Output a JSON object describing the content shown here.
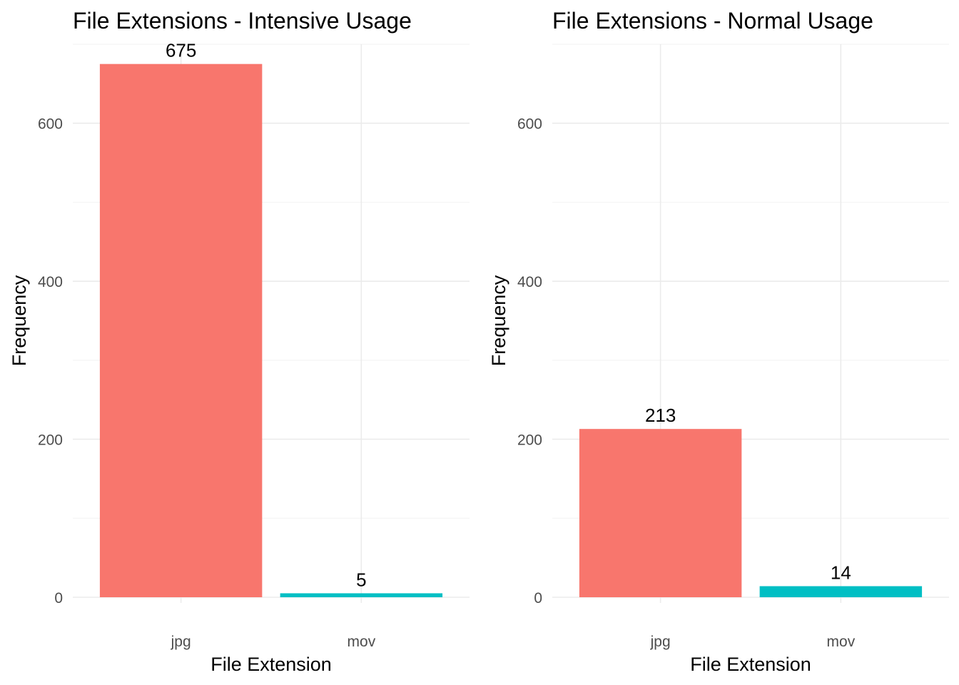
{
  "chart_data": [
    {
      "type": "bar",
      "title": "File Extensions - Intensive Usage",
      "xlabel": "File Extension",
      "ylabel": "Frequency",
      "categories": [
        "jpg",
        "mov"
      ],
      "values": [
        675,
        5
      ],
      "data_labels": [
        "675",
        "5"
      ],
      "colors": [
        "#F8766D",
        "#00BFC4"
      ],
      "ylim": [
        0,
        700
      ],
      "yticks": [
        0,
        200,
        400,
        600
      ],
      "ytick_labels": [
        "0",
        "200",
        "400",
        "600"
      ],
      "grid": true,
      "legend": "none"
    },
    {
      "type": "bar",
      "title": "File Extensions - Normal Usage",
      "xlabel": "File Extension",
      "ylabel": "Frequency",
      "categories": [
        "jpg",
        "mov"
      ],
      "values": [
        213,
        14
      ],
      "data_labels": [
        "213",
        "14"
      ],
      "colors": [
        "#F8766D",
        "#00BFC4"
      ],
      "ylim": [
        0,
        700
      ],
      "yticks": [
        0,
        200,
        400,
        600
      ],
      "ytick_labels": [
        "0",
        "200",
        "400",
        "600"
      ],
      "grid": true,
      "legend": "none"
    }
  ]
}
